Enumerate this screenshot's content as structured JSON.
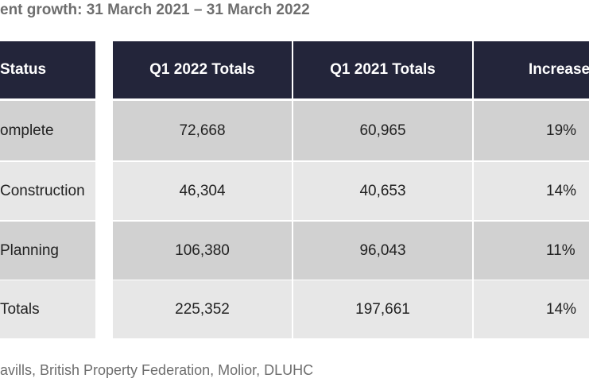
{
  "title": "ent growth: 31 March 2021 – 31 March 2022",
  "table": {
    "header": [
      "Status",
      "Q1 2022 Totals",
      "Q1 2021 Totals",
      "Increase"
    ],
    "rows": [
      [
        "omplete",
        "72,668",
        "60,965",
        "19%"
      ],
      [
        "Construction",
        "46,304",
        "40,653",
        "14%"
      ],
      [
        "Planning",
        "106,380",
        "96,043",
        "11%"
      ],
      [
        "Totals",
        "225,352",
        "197,661",
        "14%"
      ]
    ]
  },
  "source": "avills, British Property Federation, Molior, DLUHC"
}
